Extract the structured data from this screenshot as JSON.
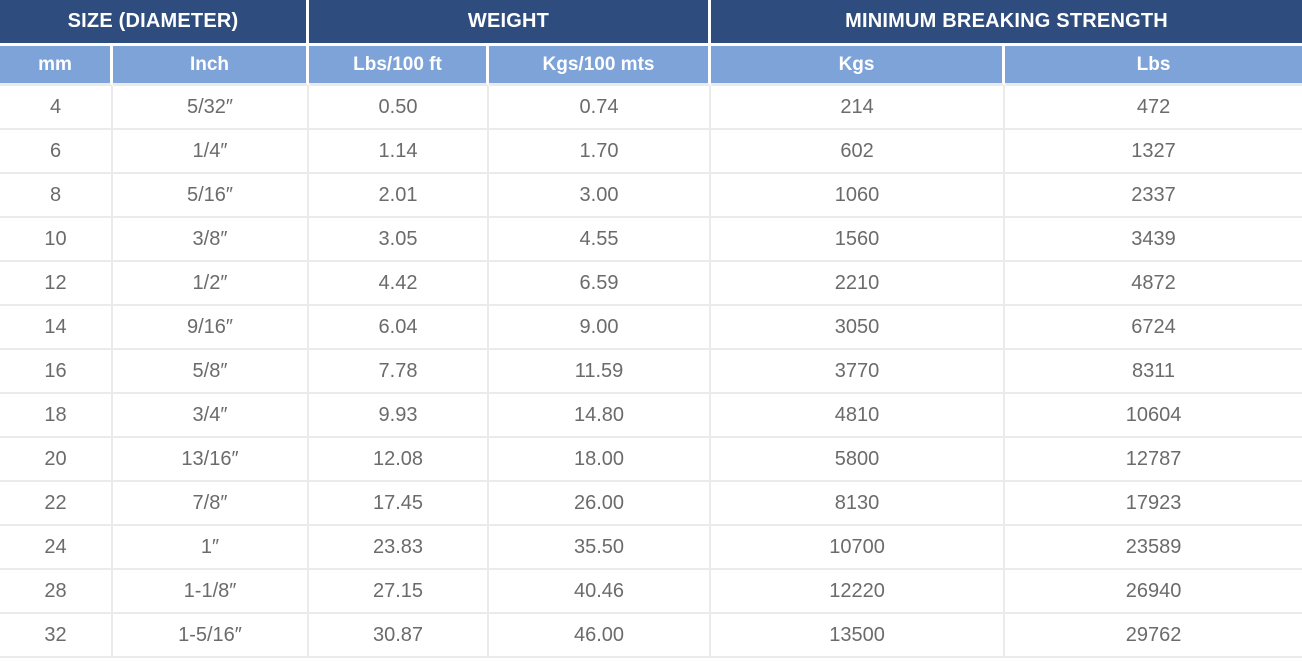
{
  "colors": {
    "header_primary_bg": "#2e4d7e",
    "header_secondary_bg": "#7da3d8",
    "header_text": "#ffffff",
    "body_text": "#6b6b6b",
    "grid_line": "#ebebeb",
    "row_bg": "#ffffff"
  },
  "table": {
    "header_groups": [
      {
        "label": "SIZE (DIAMETER)",
        "colspan": 2
      },
      {
        "label": "WEIGHT",
        "colspan": 2
      },
      {
        "label": "MINIMUM BREAKING STRENGTH",
        "colspan": 2
      }
    ],
    "columns": [
      {
        "label": "mm"
      },
      {
        "label": "Inch"
      },
      {
        "label": "Lbs/100 ft"
      },
      {
        "label": "Kgs/100 mts"
      },
      {
        "label": "Kgs"
      },
      {
        "label": "Lbs"
      }
    ],
    "rows": [
      [
        "4",
        "5/32″",
        "0.50",
        "0.74",
        "214",
        "472"
      ],
      [
        "6",
        "1/4″",
        "1.14",
        "1.70",
        "602",
        "1327"
      ],
      [
        "8",
        "5/16″",
        "2.01",
        "3.00",
        "1060",
        "2337"
      ],
      [
        "10",
        "3/8″",
        "3.05",
        "4.55",
        "1560",
        "3439"
      ],
      [
        "12",
        "1/2″",
        "4.42",
        "6.59",
        "2210",
        "4872"
      ],
      [
        "14",
        "9/16″",
        "6.04",
        "9.00",
        "3050",
        "6724"
      ],
      [
        "16",
        "5/8″",
        "7.78",
        "11.59",
        "3770",
        "8311"
      ],
      [
        "18",
        "3/4″",
        "9.93",
        "14.80",
        "4810",
        "10604"
      ],
      [
        "20",
        "13/16″",
        "12.08",
        "18.00",
        "5800",
        "12787"
      ],
      [
        "22",
        "7/8″",
        "17.45",
        "26.00",
        "8130",
        "17923"
      ],
      [
        "24",
        "1″",
        "23.83",
        "35.50",
        "10700",
        "23589"
      ],
      [
        "28",
        "1-1/8″",
        "27.15",
        "40.46",
        "12220",
        "26940"
      ],
      [
        "32",
        "1-5/16″",
        "30.87",
        "46.00",
        "13500",
        "29762"
      ]
    ]
  }
}
